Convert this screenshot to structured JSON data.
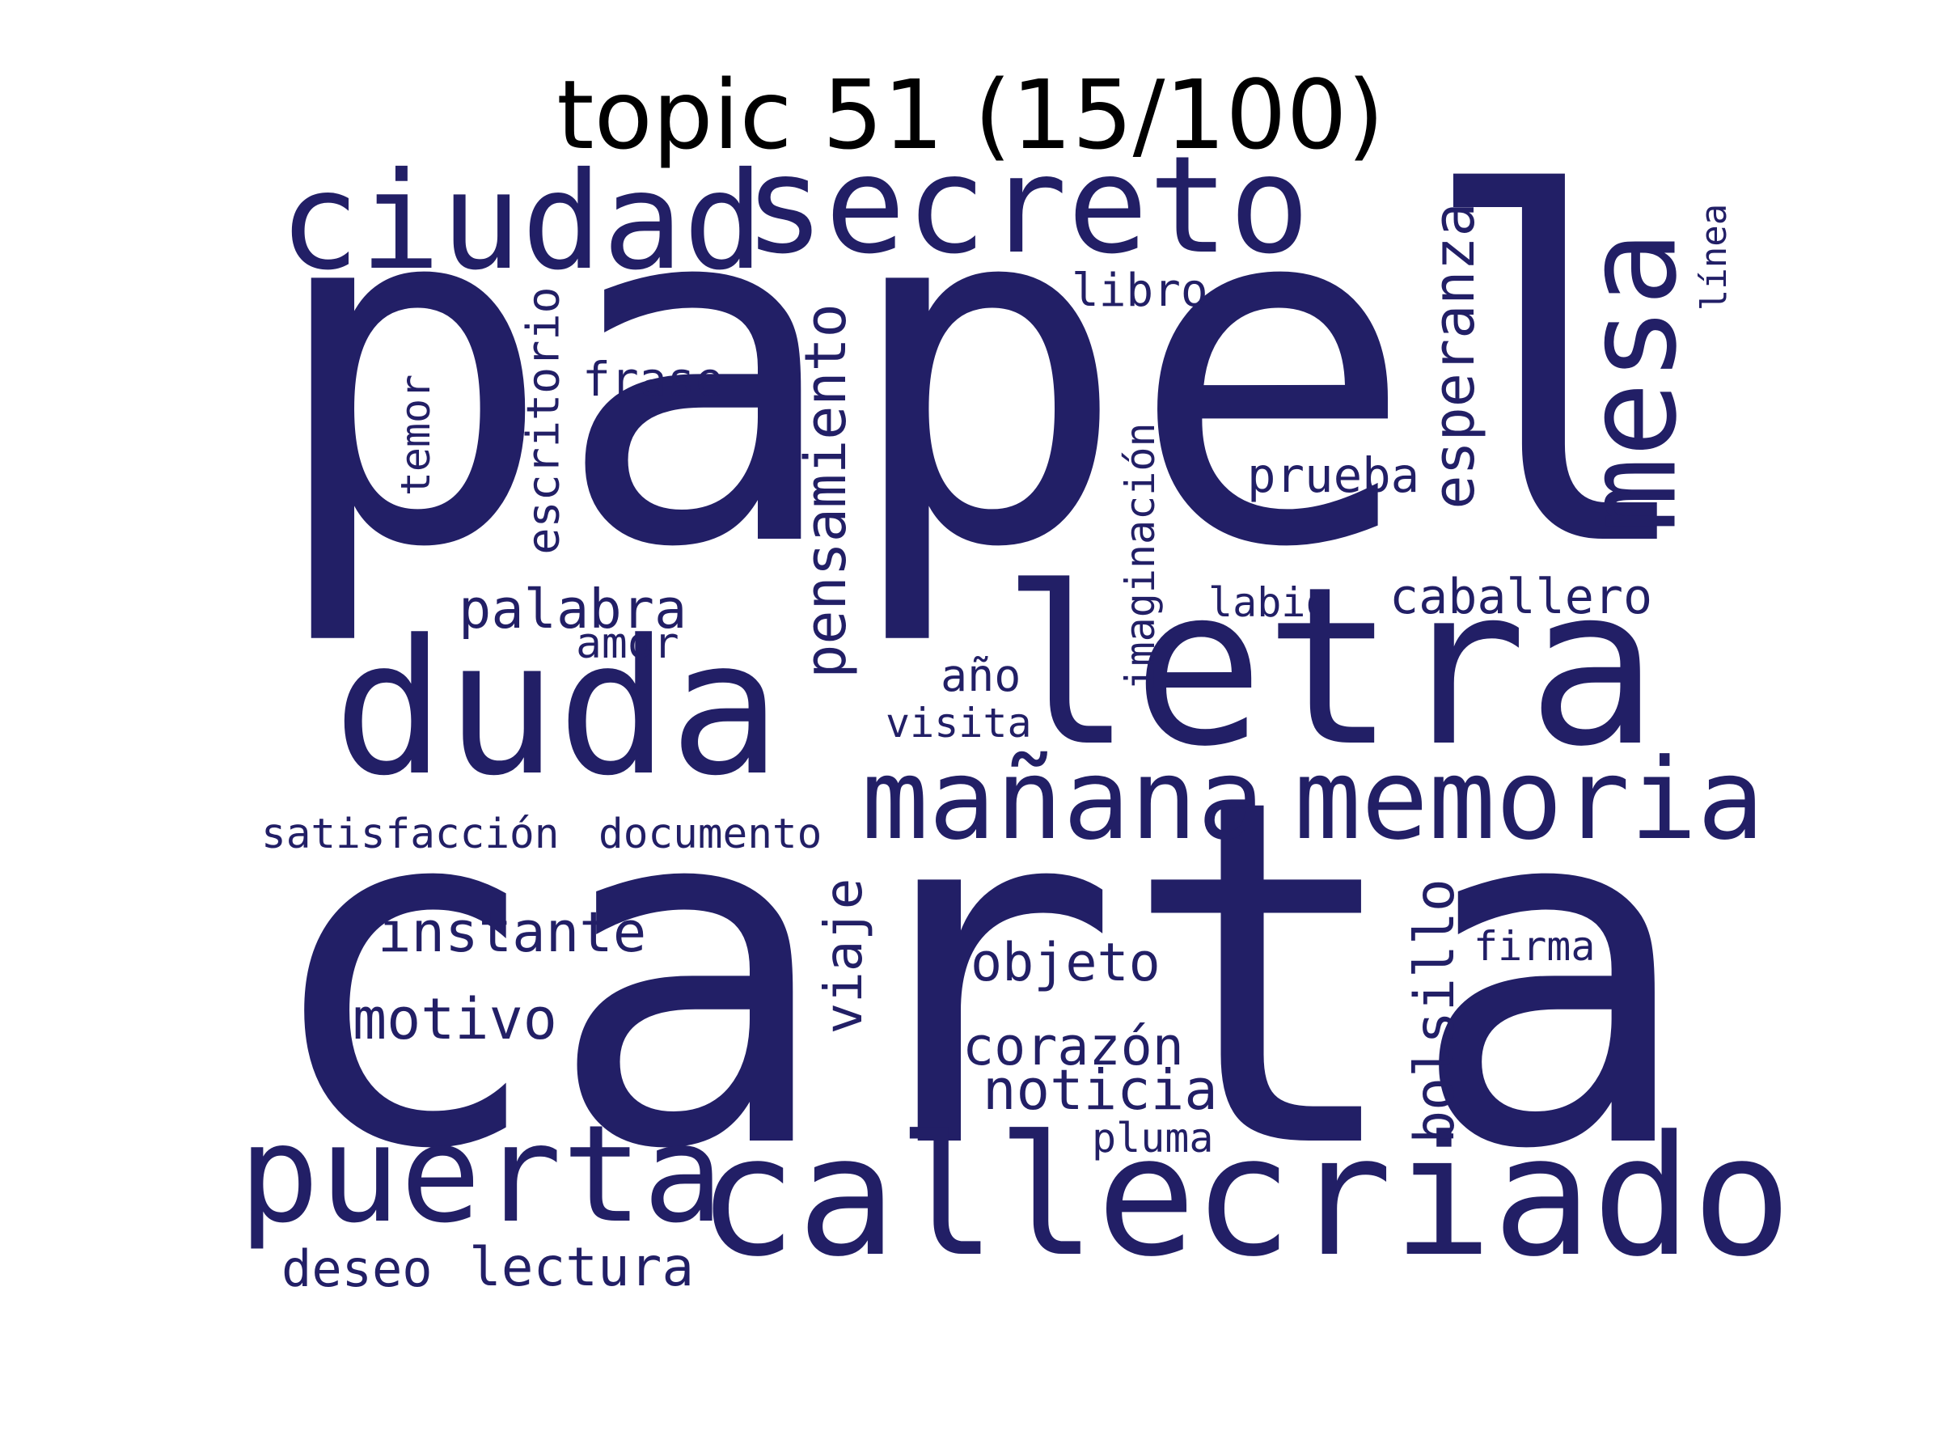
{
  "title": "topic 51 (15/100)",
  "word_color": "#221f66",
  "words": [
    {
      "text": "papel",
      "orientation": "horizontal"
    },
    {
      "text": "carta",
      "orientation": "horizontal"
    },
    {
      "text": "letra",
      "orientation": "horizontal"
    },
    {
      "text": "duda",
      "orientation": "horizontal"
    },
    {
      "text": "calle",
      "orientation": "horizontal"
    },
    {
      "text": "criado",
      "orientation": "horizontal"
    },
    {
      "text": "secreto",
      "orientation": "horizontal"
    },
    {
      "text": "ciudad",
      "orientation": "horizontal"
    },
    {
      "text": "puerta",
      "orientation": "horizontal"
    },
    {
      "text": "mesa",
      "orientation": "vertical"
    },
    {
      "text": "mañana",
      "orientation": "horizontal"
    },
    {
      "text": "memoria",
      "orientation": "horizontal"
    },
    {
      "text": "pensamiento",
      "orientation": "vertical"
    },
    {
      "text": "esperanza",
      "orientation": "vertical"
    },
    {
      "text": "bolsillo",
      "orientation": "vertical"
    },
    {
      "text": "instante",
      "orientation": "horizontal"
    },
    {
      "text": "palabra",
      "orientation": "horizontal"
    },
    {
      "text": "escritorio",
      "orientation": "vertical"
    },
    {
      "text": "lectura",
      "orientation": "horizontal"
    },
    {
      "text": "noticia",
      "orientation": "horizontal"
    },
    {
      "text": "motivo",
      "orientation": "horizontal"
    },
    {
      "text": "objeto",
      "orientation": "horizontal"
    },
    {
      "text": "corazón",
      "orientation": "horizontal"
    },
    {
      "text": "viaje",
      "orientation": "vertical"
    },
    {
      "text": "caballero",
      "orientation": "horizontal"
    },
    {
      "text": "prueba",
      "orientation": "horizontal"
    },
    {
      "text": "deseo",
      "orientation": "horizontal"
    },
    {
      "text": "frase",
      "orientation": "horizontal"
    },
    {
      "text": "imaginación",
      "orientation": "vertical"
    },
    {
      "text": "documento",
      "orientation": "horizontal"
    },
    {
      "text": "amor",
      "orientation": "horizontal"
    },
    {
      "text": "año",
      "orientation": "horizontal"
    },
    {
      "text": "libro",
      "orientation": "horizontal"
    },
    {
      "text": "visita",
      "orientation": "horizontal"
    },
    {
      "text": "satisfacción",
      "orientation": "horizontal"
    },
    {
      "text": "firma",
      "orientation": "horizontal"
    },
    {
      "text": "labio",
      "orientation": "horizontal"
    },
    {
      "text": "pluma",
      "orientation": "horizontal"
    },
    {
      "text": "temor",
      "orientation": "vertical"
    },
    {
      "text": "línea",
      "orientation": "vertical"
    }
  ]
}
